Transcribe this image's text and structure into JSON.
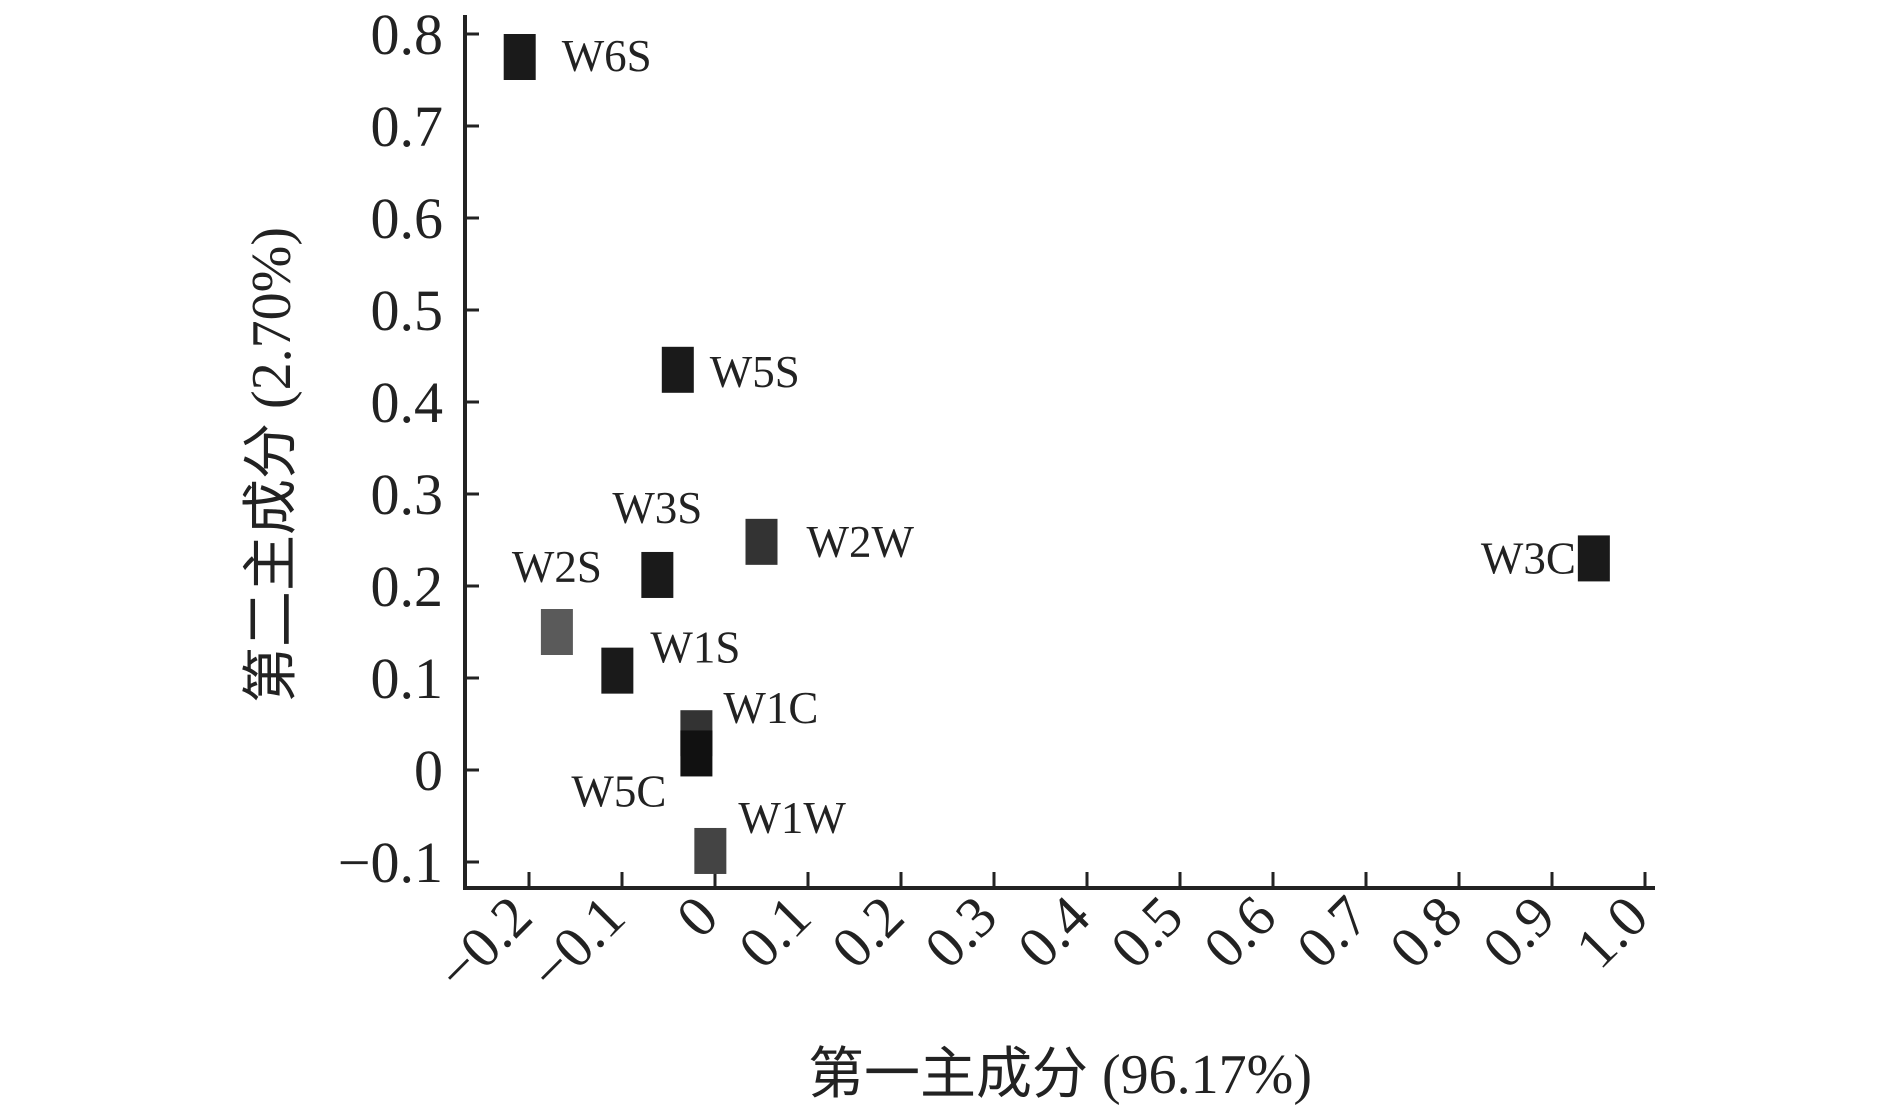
{
  "chart_data": {
    "type": "scatter",
    "xlabel": "第一主成分 (96.17%)",
    "ylabel": "第二主成分 (2.70%)",
    "xlim": [
      -0.27,
      1.0
    ],
    "ylim": [
      -0.13,
      0.82
    ],
    "x_ticks": [
      "−0.2",
      "−0.1",
      "0",
      "0.1",
      "0.2",
      "0.3",
      "0.4",
      "0.5",
      "0.6",
      "0.7",
      "0.8",
      "0.9",
      "1.0"
    ],
    "x_tick_values": [
      -0.2,
      -0.1,
      0,
      0.1,
      0.2,
      0.3,
      0.4,
      0.5,
      0.6,
      0.7,
      0.8,
      0.9,
      1.0
    ],
    "y_ticks": [
      "−0.1",
      "0",
      "0.1",
      "0.2",
      "0.3",
      "0.4",
      "0.5",
      "0.6",
      "0.7",
      "0.8"
    ],
    "y_tick_values": [
      -0.1,
      0,
      0.1,
      0.2,
      0.3,
      0.4,
      0.5,
      0.6,
      0.7,
      0.8
    ],
    "grid": false,
    "marker": "square",
    "points": [
      {
        "label": "W6S",
        "x": -0.21,
        "y": 0.775,
        "color": "#1a1a1a"
      },
      {
        "label": "W5S",
        "x": -0.04,
        "y": 0.435,
        "color": "#1a1a1a"
      },
      {
        "label": "W3S",
        "x": -0.062,
        "y": 0.212,
        "color": "#1a1a1a"
      },
      {
        "label": "W2W",
        "x": 0.05,
        "y": 0.248,
        "color": "#333333"
      },
      {
        "label": "W2S",
        "x": -0.17,
        "y": 0.15,
        "color": "#5a5a5a"
      },
      {
        "label": "W1S",
        "x": -0.105,
        "y": 0.108,
        "color": "#1a1a1a"
      },
      {
        "label": "W1C",
        "x": -0.02,
        "y": 0.04,
        "color": "#333333"
      },
      {
        "label": "W5C",
        "x": -0.02,
        "y": 0.018,
        "color": "#111111"
      },
      {
        "label": "W1W",
        "x": -0.005,
        "y": -0.088,
        "color": "#444444"
      },
      {
        "label": "W3C",
        "x": 0.945,
        "y": 0.23,
        "color": "#1a1a1a"
      }
    ]
  }
}
